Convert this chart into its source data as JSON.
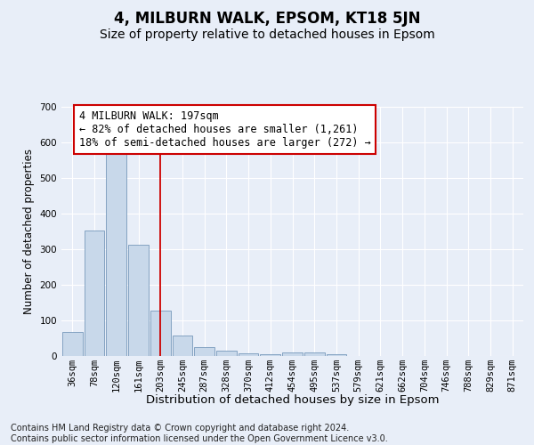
{
  "title": "4, MILBURN WALK, EPSOM, KT18 5JN",
  "subtitle": "Size of property relative to detached houses in Epsom",
  "xlabel": "Distribution of detached houses by size in Epsom",
  "ylabel": "Number of detached properties",
  "categories": [
    "36sqm",
    "78sqm",
    "120sqm",
    "161sqm",
    "203sqm",
    "245sqm",
    "287sqm",
    "328sqm",
    "370sqm",
    "412sqm",
    "454sqm",
    "495sqm",
    "537sqm",
    "579sqm",
    "621sqm",
    "662sqm",
    "704sqm",
    "746sqm",
    "788sqm",
    "829sqm",
    "871sqm"
  ],
  "values": [
    68,
    352,
    568,
    312,
    128,
    57,
    25,
    14,
    8,
    5,
    10,
    10,
    5,
    0,
    0,
    0,
    0,
    0,
    0,
    0,
    0
  ],
  "bar_color": "#c8d8ea",
  "bar_edge_color": "#7799bb",
  "vline_index": 4,
  "vline_color": "#cc0000",
  "ylim": [
    0,
    700
  ],
  "yticks": [
    0,
    100,
    200,
    300,
    400,
    500,
    600,
    700
  ],
  "annotation_text": "4 MILBURN WALK: 197sqm\n← 82% of detached houses are smaller (1,261)\n18% of semi-detached houses are larger (272) →",
  "annotation_box_color": "#ffffff",
  "annotation_box_edge": "#cc0000",
  "footnote": "Contains HM Land Registry data © Crown copyright and database right 2024.\nContains public sector information licensed under the Open Government Licence v3.0.",
  "title_fontsize": 12,
  "subtitle_fontsize": 10,
  "xlabel_fontsize": 9.5,
  "ylabel_fontsize": 8.5,
  "tick_fontsize": 7.5,
  "annot_fontsize": 8.5,
  "footnote_fontsize": 7,
  "background_color": "#e8eef8",
  "plot_bg_color": "#e8eef8",
  "grid_color": "#ffffff"
}
